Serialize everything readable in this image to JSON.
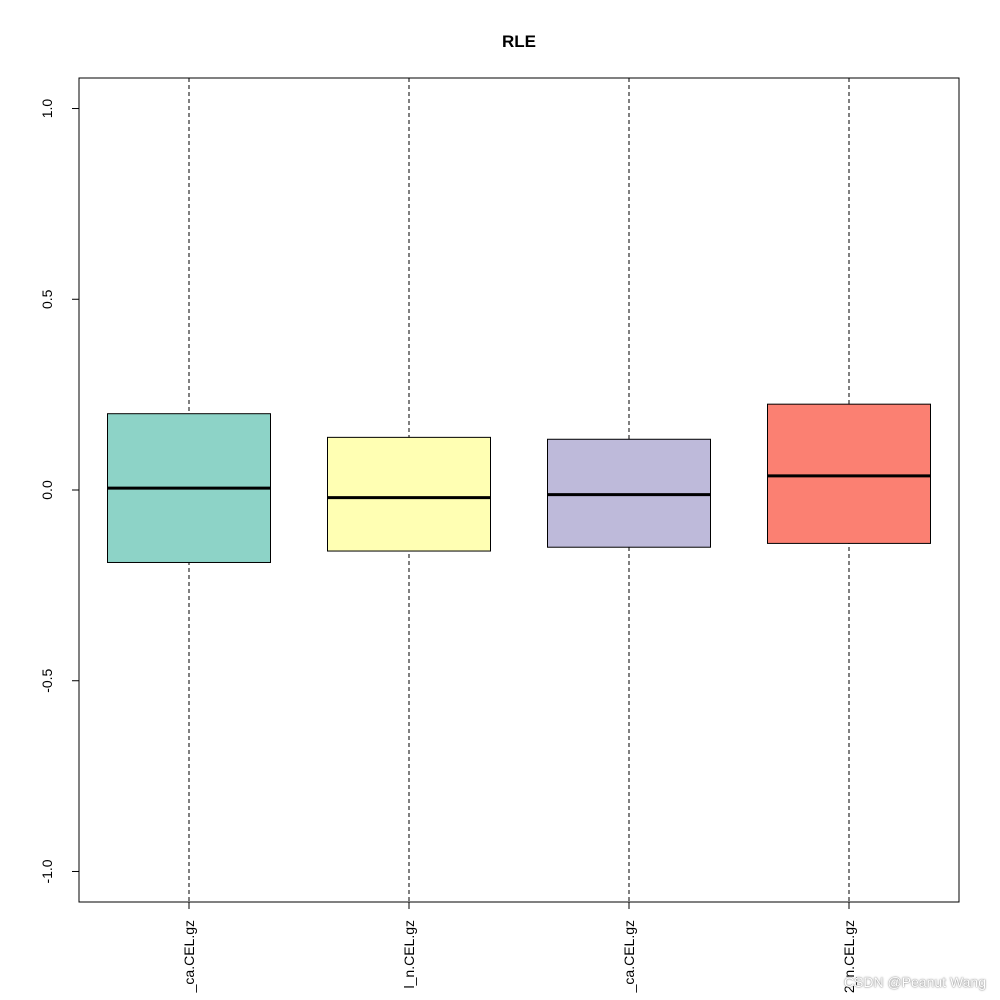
{
  "chart_data": {
    "type": "boxplot",
    "title": "RLE",
    "xlabel": "",
    "ylabel": "",
    "ylim": [
      -1.08,
      1.08
    ],
    "yticks": [
      -1.0,
      -0.5,
      0.0,
      0.5,
      1.0
    ],
    "ytick_labels": [
      "-1.0",
      "-0.5",
      "0.0",
      "0.5",
      "1.0"
    ],
    "categories": [
      "_ca.CEL.gz",
      "l_n.CEL.gz",
      "_ca.CEL.gz",
      "2_n.CEL.gz"
    ],
    "boxes": [
      {
        "q1": -0.19,
        "median": 0.005,
        "q3": 0.2,
        "whisker_low": -1.08,
        "whisker_high": 1.08,
        "color": "#8DD3C7"
      },
      {
        "q1": -0.16,
        "median": -0.02,
        "q3": 0.138,
        "whisker_low": -1.08,
        "whisker_high": 1.08,
        "color": "#FFFFB3"
      },
      {
        "q1": -0.15,
        "median": -0.012,
        "q3": 0.133,
        "whisker_low": -1.08,
        "whisker_high": 1.08,
        "color": "#BEBADA"
      },
      {
        "q1": -0.14,
        "median": 0.037,
        "q3": 0.225,
        "whisker_low": -1.08,
        "whisker_high": 1.08,
        "color": "#FB8072"
      }
    ],
    "grid": false,
    "legend": "none"
  },
  "watermark": "CSDN @Peanut Wang"
}
